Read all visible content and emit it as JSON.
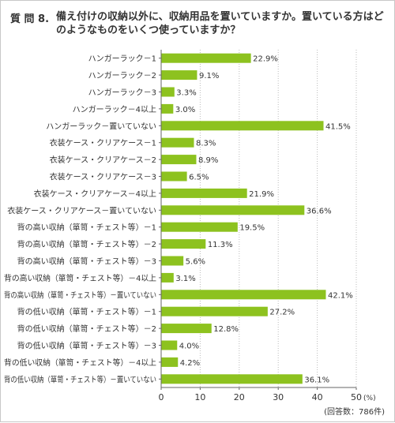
{
  "question": {
    "number": "質 問 8.",
    "text": "備え付けの収納以外に、収納用品を置いていますか。置いている方はどのようなものをいくつ使っていますか？"
  },
  "respondents_note": "(回答数：786件)",
  "colors": {
    "bar": "#8dc21f",
    "axis": "#666666",
    "grid": "#bbbbbb"
  },
  "chart_data": {
    "type": "bar",
    "orientation": "horizontal",
    "categories": [
      "ハンガーラック－1",
      "ハンガーラック－2",
      "ハンガーラック－3",
      "ハンガーラック－4以上",
      "ハンガーラック－置いていない",
      "衣装ケース・クリアケース－1",
      "衣装ケース・クリアケース－2",
      "衣装ケース・クリアケース－3",
      "衣装ケース・クリアケース－4以上",
      "衣装ケース・クリアケース－置いていない",
      "背の高い収納（箪笥・チェスト等）－1",
      "背の高い収納（箪笥・チェスト等）－2",
      "背の高い収納（箪笥・チェスト等）－3",
      "背の高い収納（箪笥・チェスト等）－4以上",
      "背の高い収納（箪笥・チェスト等）－置いていない",
      "背の低い収納（箪笥・チェスト等）－1",
      "背の低い収納（箪笥・チェスト等）－2",
      "背の低い収納（箪笥・チェスト等）－3",
      "背の低い収納（箪笥・チェスト等）－4以上",
      "背の低い収納（箪笥・チェスト等）－置いていない"
    ],
    "values": [
      22.9,
      9.1,
      3.3,
      3.0,
      41.5,
      8.3,
      8.9,
      6.5,
      21.9,
      36.6,
      19.5,
      11.3,
      5.6,
      3.1,
      42.1,
      27.2,
      12.8,
      4.0,
      4.2,
      36.1
    ],
    "value_labels": [
      "22.9%",
      "9.1%",
      "3.3%",
      "3.0%",
      "41.5%",
      "8.3%",
      "8.9%",
      "6.5%",
      "21.9%",
      "36.6%",
      "19.5%",
      "11.3%",
      "5.6%",
      "3.1%",
      "42.1%",
      "27.2%",
      "12.8%",
      "4.0%",
      "4.2%",
      "36.1%"
    ],
    "xlim": [
      0,
      50
    ],
    "xticks": [
      "0",
      "10",
      "20",
      "30",
      "40",
      "50"
    ],
    "x_unit": "(%)",
    "grid": "vertical-dotted"
  }
}
